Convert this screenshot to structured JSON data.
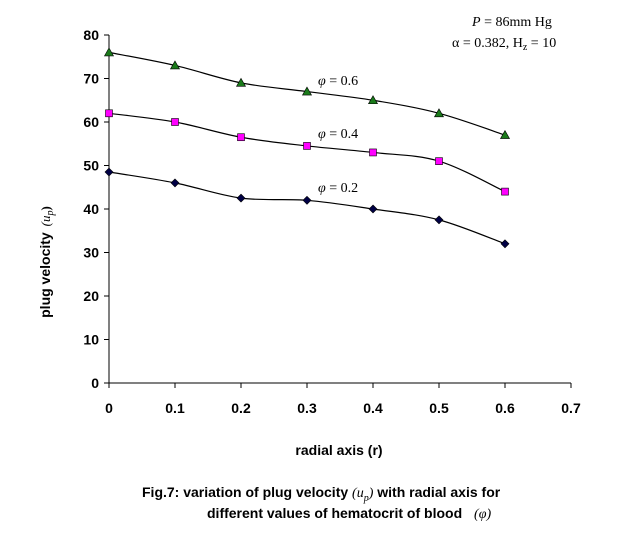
{
  "chart_data": {
    "type": "line",
    "xlabel": "radial axis (r)",
    "ylabel": {
      "text": "plug velocity",
      "symbol": "(u",
      "symbol_sub": "p",
      "symbol_close": ")"
    },
    "xlim": [
      0,
      0.7
    ],
    "ylim": [
      0,
      80
    ],
    "x_ticks": [
      "0",
      "0.1",
      "0.2",
      "0.3",
      "0.4",
      "0.5",
      "0.6",
      "0.7"
    ],
    "y_ticks": [
      "0",
      "10",
      "20",
      "30",
      "40",
      "50",
      "60",
      "70",
      "80"
    ],
    "x_tick_values": [
      0,
      0.1,
      0.2,
      0.3,
      0.4,
      0.5,
      0.6,
      0.7
    ],
    "y_tick_values": [
      0,
      10,
      20,
      30,
      40,
      50,
      60,
      70,
      80
    ],
    "x": [
      0,
      0.1,
      0.2,
      0.3,
      0.4,
      0.5,
      0.6
    ],
    "series": [
      {
        "name": "φ = 0.6",
        "values": [
          76,
          73,
          69,
          67,
          65,
          62,
          57
        ],
        "marker": "triangle",
        "color": "#1a7a1a"
      },
      {
        "name": "φ = 0.4",
        "values": [
          62,
          60,
          56.5,
          54.5,
          53,
          51,
          44
        ],
        "marker": "square",
        "color": "#ff00ff"
      },
      {
        "name": "φ = 0.2",
        "values": [
          48.5,
          46,
          42.5,
          42,
          40,
          37.5,
          32
        ],
        "marker": "diamond",
        "color": "#000044"
      }
    ],
    "series_labels": [
      {
        "phi": "φ",
        "eq": " = 0.6"
      },
      {
        "phi": "φ",
        "eq": " = 0.4"
      },
      {
        "phi": "φ",
        "eq": " = 0.2"
      }
    ],
    "annotations": {
      "line1_var": "P",
      "line1_rest": " = 86mm Hg",
      "line2": "α = 0.382, H",
      "line2_sub": "z",
      "line2_rest": " = 10"
    },
    "grid": false
  },
  "caption": {
    "line1_a": "Fig.7: variation of plug velocity",
    "line1_sym": "(u",
    "line1_sub": "p",
    "line1_close": ")",
    "line1_b": "with radial axis for",
    "line2_a": "different values of hematocrit of blood",
    "line2_sym": "(φ)"
  }
}
